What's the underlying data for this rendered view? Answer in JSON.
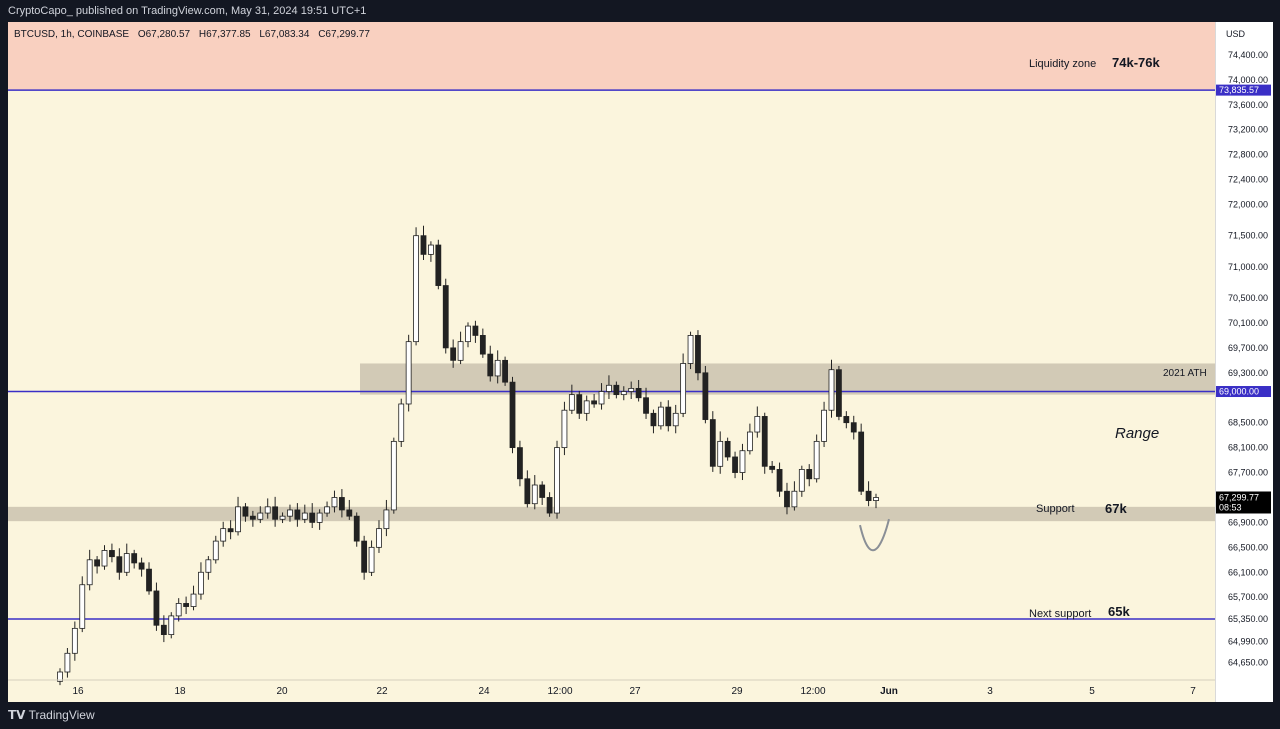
{
  "header": {
    "publisher_line": "CryptoCapo_ published on TradingView.com, May 31, 2024 19:51 UTC+1"
  },
  "symbol_info": {
    "symbol": "BTCUSD, 1h, COINBASE",
    "open": "O67,280.57",
    "high": "H67,377.85",
    "low": "L67,083.34",
    "close": "C67,299.77"
  },
  "footer": {
    "brand": "TradingView",
    "logo_glyph": "𝗧𝗩"
  },
  "colors": {
    "background": "#fbf5dd",
    "liquidity_zone": "#f9d0c0",
    "zone_box": "#d2cab6",
    "level_line": "#3a2fc6",
    "candle": "#222222",
    "arc": "#8a8f96"
  },
  "chart_data": {
    "type": "candlestick",
    "currency": "USD",
    "x_ticks": [
      "16",
      "18",
      "20",
      "22",
      "24",
      "12:00",
      "27",
      "29",
      "12:00",
      "Jun",
      "3",
      "5",
      "7"
    ],
    "y_ticks": [
      74400,
      74000,
      73600,
      73200,
      72800,
      72400,
      72000,
      71500,
      71000,
      70500,
      70100,
      69700,
      69300,
      68500,
      68100,
      67700,
      66900,
      66500,
      66100,
      65700,
      65350,
      64990,
      64650
    ],
    "y_tick_labels": [
      "74,400.00",
      "74,000.00",
      "73,600.00",
      "73,200.00",
      "72,800.00",
      "72,400.00",
      "72,000.00",
      "71,500.00",
      "71,000.00",
      "70,500.00",
      "70,100.00",
      "69,700.00",
      "69,300.00",
      "68,500.00",
      "68,100.00",
      "67,700.00",
      "66,900.00",
      "66,500.00",
      "66,100.00",
      "65,700.00",
      "65,350.00",
      "64,990.00",
      "64,650.00"
    ],
    "close_series": [
      64500,
      64800,
      65200,
      65900,
      66300,
      66200,
      66450,
      66350,
      66100,
      66400,
      66250,
      66150,
      65800,
      65250,
      65100,
      65400,
      65600,
      65550,
      65750,
      66100,
      66300,
      66600,
      66800,
      66750,
      67150,
      67000,
      66950,
      67050,
      67150,
      66950,
      67000,
      67100,
      66950,
      67050,
      66900,
      67050,
      67150,
      67300,
      67100,
      67000,
      66600,
      66100,
      66500,
      66800,
      67100,
      68200,
      68800,
      69800,
      71500,
      71200,
      71350,
      70700,
      69700,
      69500,
      69800,
      70050,
      69900,
      69600,
      69250,
      69500,
      69150,
      68100,
      67600,
      67200,
      67500,
      67300,
      67050,
      68100,
      68700,
      68950,
      68650,
      68850,
      68800,
      69000,
      69100,
      68950,
      69000,
      69050,
      68900,
      68650,
      68450,
      68750,
      68450,
      68650,
      69450,
      69900,
      69300,
      68550,
      67800,
      68200,
      67950,
      67700,
      68050,
      68350,
      68600,
      67800,
      67750,
      67400,
      67150,
      67400,
      67750,
      67600,
      68200,
      68700,
      69350,
      68600,
      68500,
      68350,
      67400,
      67250,
      67299.77
    ],
    "levels": {
      "liquidity_top": 74800,
      "liquidity_bottom": 73835.57,
      "ath_2021": 69000,
      "next_support": 65350,
      "range_box_top": 69450,
      "range_box_bottom": 68950,
      "support_box_top": 67150,
      "support_box_bottom": 66920,
      "last_price": 67299.77
    },
    "ylim": [
      64500,
      74800
    ],
    "annotations": {
      "liquidity_zone_label": "Liquidity zone",
      "liquidity_zone_value": "74k-76k",
      "ath_label": "2021 ATH",
      "range_label": "Range",
      "support_label": "Support",
      "support_value": "67k",
      "next_support_label": "Next support",
      "next_support_value": "65k"
    },
    "price_tags": {
      "liquidity": "73,835.57",
      "ath": "69,000.00",
      "last": "67,299.77",
      "countdown": "08:53"
    }
  }
}
